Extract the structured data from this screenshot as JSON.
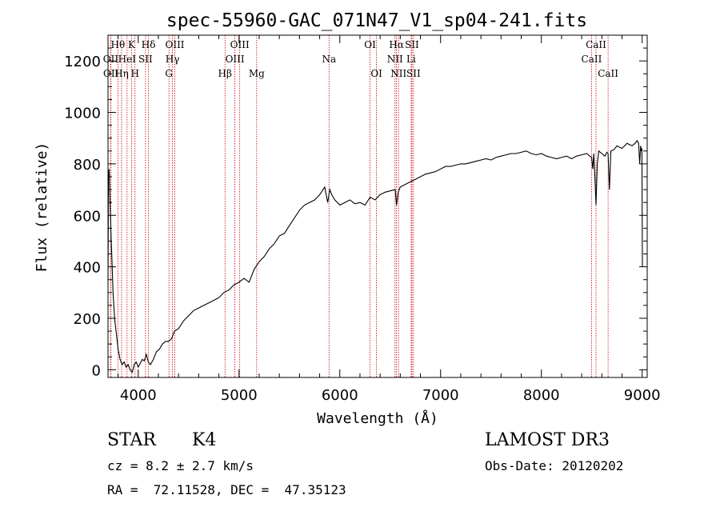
{
  "chart_data": {
    "type": "line",
    "title": "spec-55960-GAC_071N47_V1_sp04-241.fits",
    "xlabel": "Wavelength (Å)",
    "ylabel": "Flux (relative)",
    "xlim": [
      3700,
      9050
    ],
    "ylim": [
      -30,
      1300
    ],
    "xticks": [
      4000,
      5000,
      6000,
      7000,
      8000,
      9000
    ],
    "yticks": [
      0,
      200,
      400,
      600,
      800,
      1000,
      1200
    ],
    "grid": false,
    "series": [
      {
        "name": "flux",
        "x": [
          3700,
          3705,
          3712,
          3720,
          3730,
          3740,
          3750,
          3765,
          3780,
          3800,
          3820,
          3840,
          3860,
          3880,
          3900,
          3920,
          3940,
          3960,
          3980,
          4000,
          4020,
          4040,
          4060,
          4080,
          4100,
          4120,
          4150,
          4180,
          4210,
          4240,
          4270,
          4300,
          4330,
          4360,
          4400,
          4450,
          4500,
          4550,
          4600,
          4650,
          4700,
          4750,
          4800,
          4850,
          4900,
          4950,
          5000,
          5050,
          5100,
          5150,
          5200,
          5250,
          5300,
          5350,
          5400,
          5450,
          5500,
          5550,
          5600,
          5650,
          5700,
          5750,
          5800,
          5850,
          5880,
          5900,
          5920,
          5950,
          6000,
          6050,
          6100,
          6150,
          6200,
          6250,
          6300,
          6350,
          6400,
          6450,
          6500,
          6550,
          6563,
          6580,
          6600,
          6650,
          6700,
          6750,
          6800,
          6850,
          6900,
          6950,
          7000,
          7050,
          7100,
          7150,
          7200,
          7250,
          7300,
          7350,
          7400,
          7450,
          7500,
          7550,
          7600,
          7650,
          7700,
          7750,
          7800,
          7850,
          7900,
          7950,
          8000,
          8050,
          8100,
          8150,
          8200,
          8250,
          8300,
          8350,
          8400,
          8450,
          8480,
          8498,
          8510,
          8520,
          8530,
          8542,
          8555,
          8570,
          8600,
          8630,
          8650,
          8662,
          8675,
          8690,
          8720,
          8750,
          8800,
          8850,
          8900,
          8930,
          8950,
          8965,
          8975,
          8985,
          8992,
          8998,
          9002
        ],
        "y": [
          350,
          760,
          780,
          650,
          520,
          420,
          300,
          200,
          150,
          80,
          40,
          20,
          30,
          10,
          20,
          0,
          -10,
          20,
          30,
          10,
          25,
          40,
          35,
          60,
          30,
          20,
          40,
          70,
          80,
          100,
          110,
          110,
          120,
          150,
          160,
          190,
          210,
          230,
          240,
          250,
          260,
          270,
          280,
          300,
          310,
          330,
          340,
          355,
          340,
          390,
          420,
          440,
          470,
          490,
          520,
          530,
          560,
          590,
          620,
          640,
          650,
          660,
          680,
          710,
          650,
          700,
          680,
          660,
          640,
          650,
          660,
          645,
          650,
          640,
          670,
          660,
          680,
          690,
          695,
          700,
          640,
          690,
          710,
          720,
          730,
          740,
          750,
          760,
          765,
          770,
          780,
          790,
          790,
          795,
          800,
          800,
          805,
          810,
          815,
          820,
          815,
          825,
          830,
          835,
          840,
          840,
          845,
          850,
          840,
          835,
          840,
          830,
          825,
          820,
          825,
          830,
          820,
          830,
          835,
          840,
          830,
          825,
          780,
          840,
          760,
          640,
          800,
          850,
          840,
          830,
          845,
          840,
          700,
          850,
          855,
          870,
          860,
          880,
          870,
          880,
          890,
          880,
          800,
          870,
          850,
          860,
          400
        ]
      }
    ],
    "lines": [
      {
        "label": "Hθ",
        "wl": 3798,
        "row": 0
      },
      {
        "label": "OII",
        "wl": 3727,
        "row": 1
      },
      {
        "label": "OII",
        "wl": 3729,
        "row": 2
      },
      {
        "label": "Hη",
        "wl": 3835,
        "row": 2
      },
      {
        "label": "K",
        "wl": 3934,
        "row": 0
      },
      {
        "label": "HeI",
        "wl": 3889,
        "row": 1
      },
      {
        "label": "H",
        "wl": 3968,
        "row": 2
      },
      {
        "label": "Hδ",
        "wl": 4102,
        "row": 0
      },
      {
        "label": "SII",
        "wl": 4072,
        "row": 1
      },
      {
        "label": "OIII",
        "wl": 4363,
        "row": 0
      },
      {
        "label": "Hγ",
        "wl": 4340,
        "row": 1
      },
      {
        "label": "G",
        "wl": 4305,
        "row": 2
      },
      {
        "label": "Hβ",
        "wl": 4861,
        "row": 2
      },
      {
        "label": "OIII",
        "wl": 5007,
        "row": 0
      },
      {
        "label": "OIII",
        "wl": 4959,
        "row": 1
      },
      {
        "label": "Mg",
        "wl": 5175,
        "row": 2
      },
      {
        "label": "Na",
        "wl": 5893,
        "row": 1
      },
      {
        "label": "OI",
        "wl": 6300,
        "row": 0
      },
      {
        "label": "OI",
        "wl": 6364,
        "row": 2
      },
      {
        "label": "Hα",
        "wl": 6563,
        "row": 0
      },
      {
        "label": "NII",
        "wl": 6548,
        "row": 1
      },
      {
        "label": "NII",
        "wl": 6583,
        "row": 2
      },
      {
        "label": "SII",
        "wl": 6716,
        "row": 0
      },
      {
        "label": "Li",
        "wl": 6708,
        "row": 1
      },
      {
        "label": "SII",
        "wl": 6731,
        "row": 2
      },
      {
        "label": "CaII",
        "wl": 8542,
        "row": 0
      },
      {
        "label": "CaII",
        "wl": 8498,
        "row": 1
      },
      {
        "label": "CaII",
        "wl": 8662,
        "row": 2
      }
    ]
  },
  "info": {
    "object_class": "STAR",
    "subclass": "K4",
    "survey": "LAMOST DR3",
    "redshift_text": "cz = 8.2 ± 2.7 km/s",
    "obs_date": "Obs-Date: 20120202",
    "coords": "RA =  72.11528, DEC =  47.35123"
  },
  "colors": {
    "line_marker": "#cc0000",
    "spectrum": "#000000"
  }
}
